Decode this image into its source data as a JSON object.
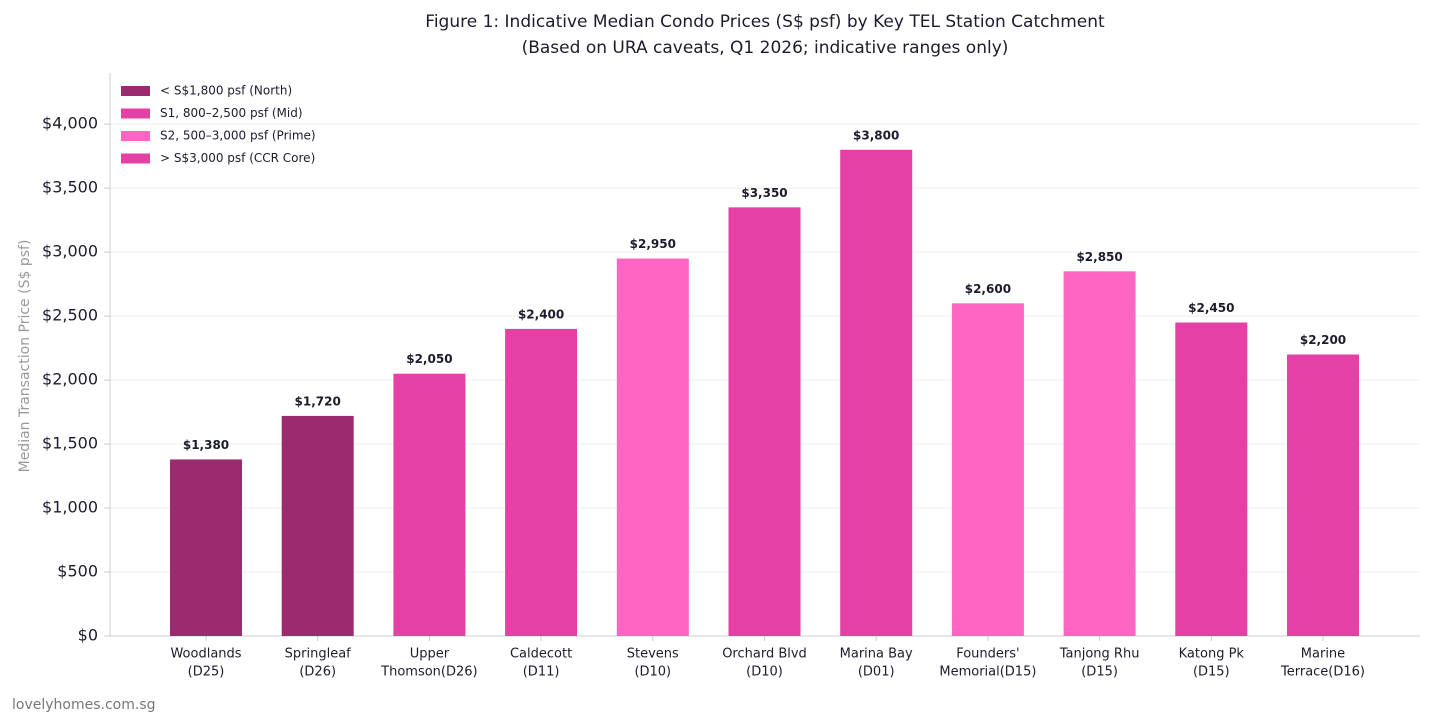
{
  "chart_data": {
    "type": "bar",
    "title": "Figure 1: Indicative Median Condo Prices (S$ psf) by Key TEL Station Catchment",
    "subtitle": "(Based on URA caveats, Q1 2026; indicative ranges only)",
    "y_label": "Median Transaction Price (S$ psf)",
    "watermark": "lovelyhomes.com.sg",
    "categories": [
      [
        "Woodlands",
        "(D25)"
      ],
      [
        "Springleaf",
        "(D26)"
      ],
      [
        "Upper",
        "Thomson(D26)"
      ],
      [
        "Caldecott",
        "(D11)"
      ],
      [
        "Stevens",
        "(D10)"
      ],
      [
        "Orchard Blvd",
        "(D10)"
      ],
      [
        "Marina Bay",
        "(D01)"
      ],
      [
        "Founders'",
        "Memorial(D15)"
      ],
      [
        "Tanjong Rhu",
        "(D15)"
      ],
      [
        "Katong Pk",
        "(D15)"
      ],
      [
        "Marine",
        "Terrace(D16)"
      ]
    ],
    "values": [
      1380,
      1720,
      2050,
      2400,
      2950,
      3350,
      3800,
      2600,
      2850,
      2450,
      2200
    ],
    "value_labels": [
      "$1,380",
      "$1,720",
      "$2,050",
      "$2,400",
      "$2,950",
      "$3,350",
      "$3,800",
      "$2,600",
      "$2,850",
      "$2,450",
      "$2,200"
    ],
    "colors": [
      "#9c2a6e",
      "#9c2a6e",
      "#e540a6",
      "#e540a6",
      "#ff66c4",
      "#e540a6",
      "#e540a6",
      "#ff66c4",
      "#ff66c4",
      "#e540a6",
      "#e540a6"
    ],
    "legend": [
      {
        "label": "< S$1,800 psf (North)",
        "color": "#9c2a6e"
      },
      {
        "label": "S1, 800–2,500 psf (Mid)",
        "color": "#e540a6"
      },
      {
        "label": "S2, 500–3,000 psf (Prime)",
        "color": "#ff66c4"
      },
      {
        "label": "> S$3,000 psf (CCR Core)",
        "color": "#e540a6"
      }
    ],
    "legend_position": "upper left",
    "ylim": [
      0,
      4400
    ],
    "yticks": [
      {
        "value": 0,
        "label": "$0"
      },
      {
        "value": 500,
        "label": "$500"
      },
      {
        "value": 1000,
        "label": "$1,000"
      },
      {
        "value": 1500,
        "label": "$1,500"
      },
      {
        "value": 2000,
        "label": "$2,000"
      },
      {
        "value": 2500,
        "label": "$2,500"
      },
      {
        "value": 3000,
        "label": "$3,000"
      },
      {
        "value": 3500,
        "label": "$3,500"
      },
      {
        "value": 4000,
        "label": "$4,000"
      }
    ],
    "grid": true
  }
}
